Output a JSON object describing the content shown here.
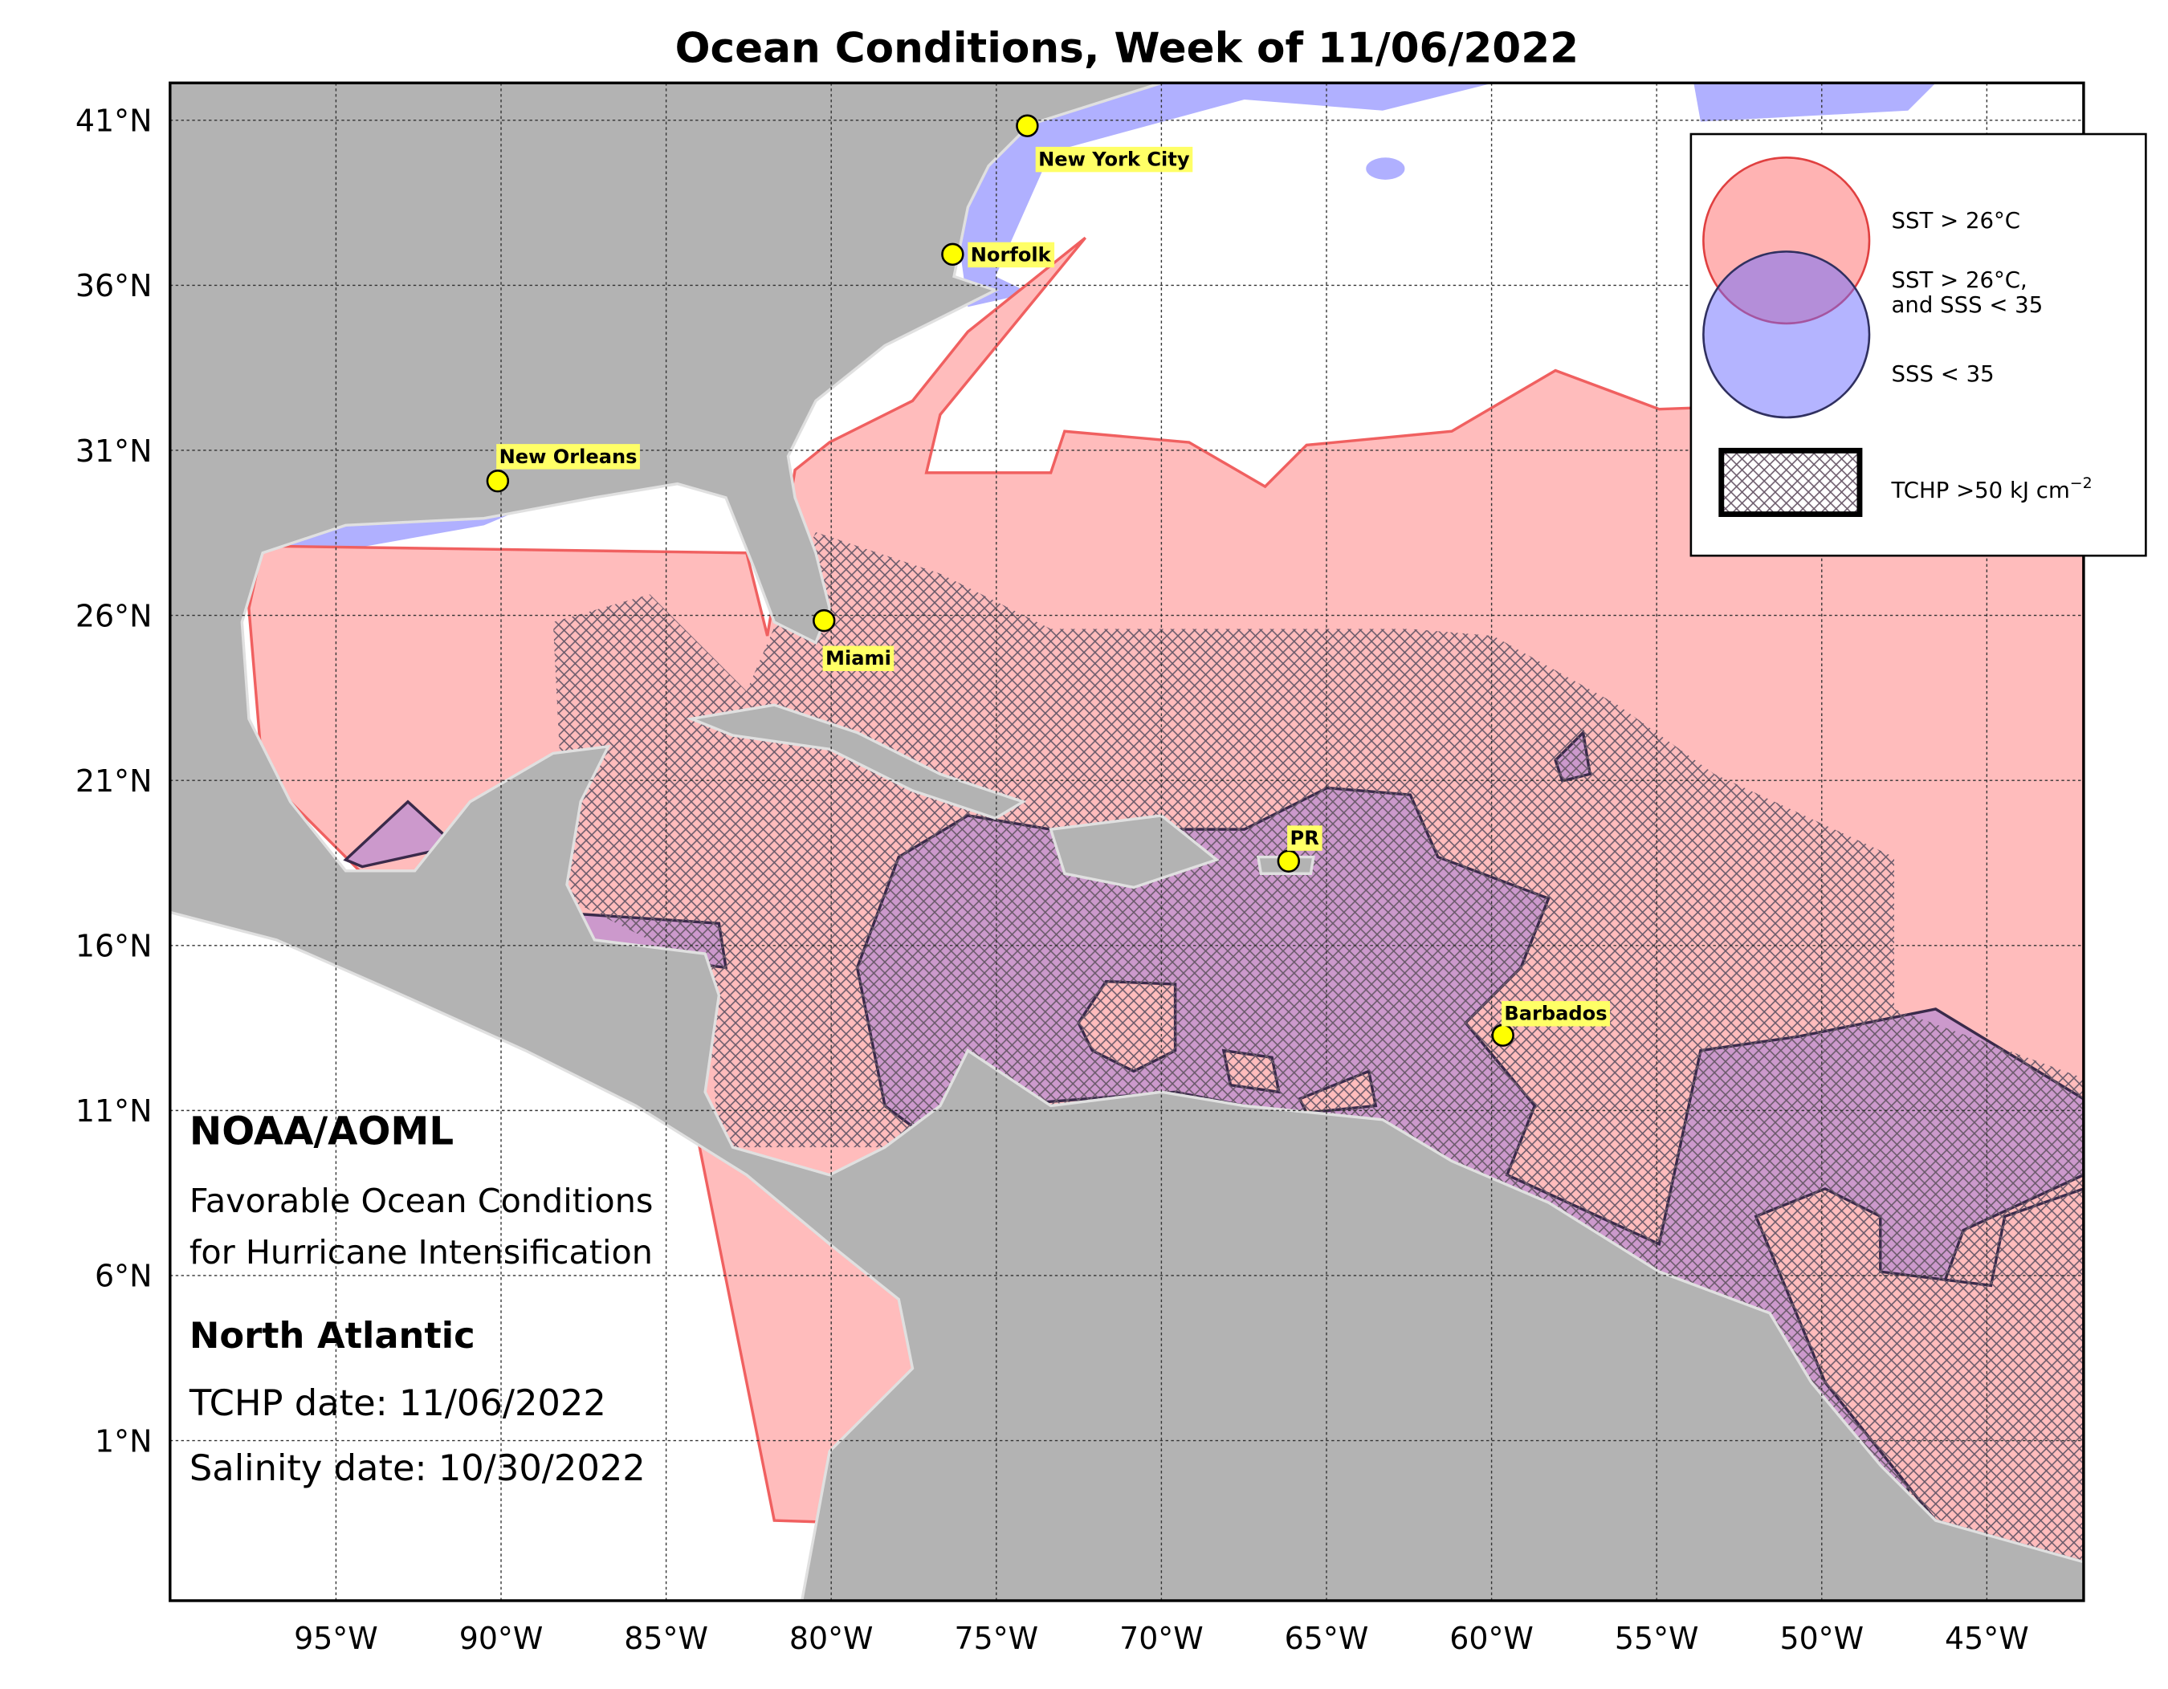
{
  "title": "Ocean Conditions, Week of 11/06/2022",
  "lat_labels": [
    "41°N",
    "36°N",
    "31°N",
    "26°N",
    "21°N",
    "16°N",
    "11°N",
    "6°N",
    "1°N"
  ],
  "lon_labels": [
    "95°W",
    "90°W",
    "85°W",
    "80°W",
    "75°W",
    "70°W",
    "65°W",
    "60°W",
    "55°W",
    "50°W",
    "45°W"
  ],
  "cities": [
    "New York City",
    "Norfolk",
    "New Orleans",
    "Miami",
    "PR",
    "Barbados"
  ],
  "legend": {
    "sst": "SST > 26°C",
    "both": [
      "SST > 26°C,",
      "and SSS < 35"
    ],
    "sss": "SSS < 35",
    "tchp": {
      "text": "TCHP >50 kJ cm",
      "superscript": "−2"
    }
  },
  "info": {
    "org": "NOAA/AOML",
    "subtitle": [
      "Favorable Ocean Conditions",
      "for Hurricane Intensification"
    ],
    "region": "North Atlantic",
    "tchp_date": "TCHP date: 11/06/2022",
    "salinity_date": "Salinity date: 10/30/2022"
  }
}
